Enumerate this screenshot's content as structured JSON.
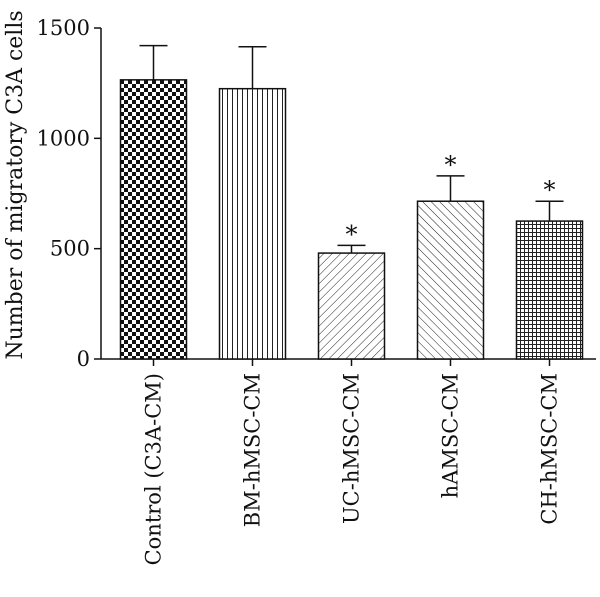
{
  "chart_data": {
    "type": "bar",
    "title": "",
    "xlabel": "",
    "ylabel": "Number of migratory C3A cells",
    "ylim": [
      0,
      1500
    ],
    "yticks": [
      0,
      500,
      1000,
      1500
    ],
    "categories": [
      "Control (C3A-CM)",
      "BM-hMSC-CM",
      "UC-hMSC-CM",
      "hAMSC-CM",
      "CH-hMSC-CM"
    ],
    "values": [
      1265,
      1225,
      480,
      715,
      625
    ],
    "errors": [
      155,
      190,
      35,
      115,
      90
    ],
    "significance": [
      "",
      "",
      "*",
      "*",
      "*"
    ],
    "fill_patterns": [
      "checkerboard",
      "vertical-lines",
      "diagonal-lines",
      "diagonal-lines-reverse",
      "grid"
    ],
    "grid": false,
    "legend": "none"
  }
}
